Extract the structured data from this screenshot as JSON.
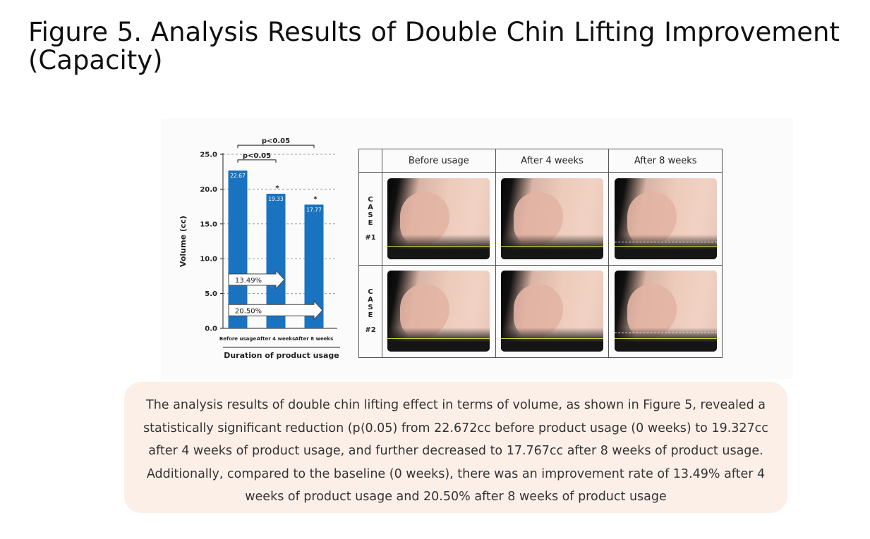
{
  "title": "Figure 5. Analysis Results of Double Chin Lifting Improvement (Capacity)",
  "chart_data": {
    "type": "bar",
    "categories": [
      "Before usage",
      "After 4 weeks",
      "After 8 weeks"
    ],
    "values": [
      22.67,
      19.33,
      17.77
    ],
    "value_labels": [
      "22.67",
      "19.33",
      "17.77"
    ],
    "ylabel": "Volume (cc)",
    "xlabel": "Duration of product usage",
    "ylim": [
      0,
      25
    ],
    "yticks": [
      "0.0",
      "5.0",
      "10.0",
      "15.0",
      "20.0",
      "25.0"
    ],
    "grid": "dashed horizontal",
    "bar_color": "#1a73c0",
    "significance": [
      {
        "label": "p<0.05",
        "from": 0,
        "to": 1
      },
      {
        "label": "p<0.05",
        "from": 0,
        "to": 2
      }
    ],
    "asterisks": [
      "",
      "*",
      "*"
    ],
    "improvement_arrows": [
      {
        "label": "13.49%",
        "value": 13.49,
        "to_category": 1
      },
      {
        "label": "20.50%",
        "value": 20.5,
        "to_category": 2
      }
    ]
  },
  "case_table": {
    "headers": [
      "Before usage",
      "After 4 weeks",
      "After 8 weeks"
    ],
    "cases": [
      {
        "letters": [
          "C",
          "A",
          "S",
          "E"
        ],
        "id": "#1"
      },
      {
        "letters": [
          "C",
          "A",
          "S",
          "E"
        ],
        "id": "#2"
      }
    ],
    "line_color": "#c9d23c"
  },
  "summary": {
    "lines": [
      "The analysis results of double chin lifting effect in terms of volume, as shown in Figure 5, revealed a",
      "statistically significant reduction (p⟨0.05) from 22.672cc before product usage (0 weeks) to 19.327cc",
      "after 4 weeks of product usage, and further decreased to 17.767cc after 8 weeks of product usage.",
      "Additionally, compared to the baseline (0 weeks), there was an improvement rate of 13.49% after 4",
      "weeks of product usage and 20.50% after 8 weeks of product usage"
    ]
  }
}
